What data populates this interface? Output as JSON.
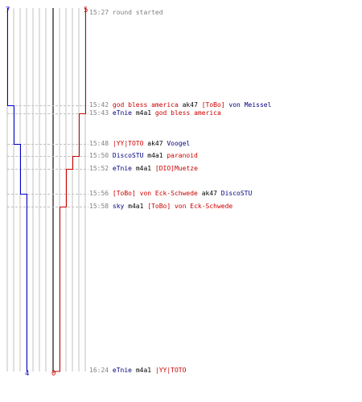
{
  "scores": {
    "blue_start": "7",
    "red_start": "5",
    "blue_end": "4",
    "red_end": "0"
  },
  "colors": {
    "blue": "#0000cc",
    "red": "#cc0000",
    "grid": "#c0c0c0",
    "center": "#707070",
    "dashed": "#c0c0c0",
    "time": "#808080"
  },
  "events": [
    {
      "time": "15:27",
      "parts": [
        {
          "text": "round started",
          "c": "gray"
        }
      ]
    },
    {
      "time": "15:42",
      "parts": [
        {
          "text": "god bless america",
          "c": "red"
        },
        {
          "text": " ak47 ",
          "c": "black"
        },
        {
          "text": "[ToBo]",
          "c": "red"
        },
        {
          "text": " von Meissel",
          "c": "blue"
        }
      ]
    },
    {
      "time": "15:43",
      "parts": [
        {
          "text": "eTnie",
          "c": "blue"
        },
        {
          "text": " m4a1 ",
          "c": "black"
        },
        {
          "text": "god bless america",
          "c": "red"
        }
      ]
    },
    {
      "time": "15:48",
      "parts": [
        {
          "text": "|YY|TOTO",
          "c": "red"
        },
        {
          "text": " ak47 ",
          "c": "black"
        },
        {
          "text": "Voogel",
          "c": "blue"
        }
      ]
    },
    {
      "time": "15:50",
      "parts": [
        {
          "text": "DiscoSTU",
          "c": "blue"
        },
        {
          "text": " m4a1 ",
          "c": "black"
        },
        {
          "text": "paranoid",
          "c": "red"
        }
      ]
    },
    {
      "time": "15:52",
      "parts": [
        {
          "text": "eTnie",
          "c": "blue"
        },
        {
          "text": " m4a1 ",
          "c": "black"
        },
        {
          "text": "[DIO]Muetze",
          "c": "red"
        }
      ]
    },
    {
      "time": "15:56",
      "parts": [
        {
          "text": "[ToBo] von Eck-Schwede",
          "c": "red"
        },
        {
          "text": " ak47 ",
          "c": "black"
        },
        {
          "text": "DiscoSTU",
          "c": "blue"
        }
      ]
    },
    {
      "time": "15:58",
      "parts": [
        {
          "text": "sky",
          "c": "blue"
        },
        {
          "text": " m4a1 ",
          "c": "black"
        },
        {
          "text": "[ToBo] von Eck-Schwede",
          "c": "red"
        }
      ]
    },
    {
      "time": "16:24",
      "parts": [
        {
          "text": "eTnie",
          "c": "blue"
        },
        {
          "text": " m4a1 ",
          "c": "black"
        },
        {
          "text": "|YY|TOTO",
          "c": "red"
        }
      ]
    }
  ]
}
